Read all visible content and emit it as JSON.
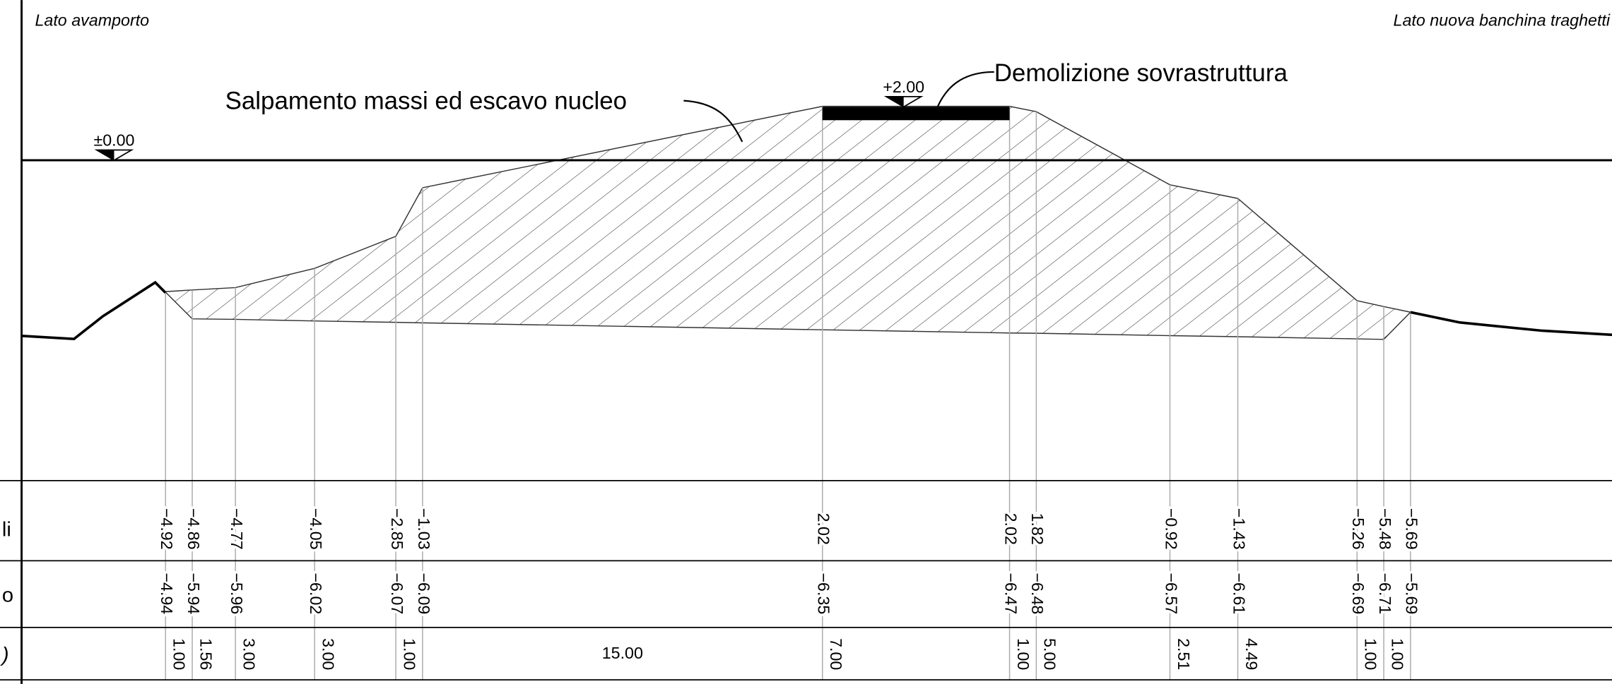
{
  "header": {
    "left": "Lato avamporto",
    "right": "Lato nuova banchina traghetti"
  },
  "annotations": {
    "excavation": "Salpamento massi ed escavo nucleo",
    "demolition": "Demolizione sovrastruttura",
    "sea_level": "±0.00",
    "crest": "+2.00"
  },
  "table": {
    "row_labels": [
      "li",
      "o",
      ")"
    ],
    "project": [
      "−4.92",
      "−4.86",
      "−4.77",
      "−4.05",
      "−2.85",
      "−1.03",
      "2.02",
      "2.02",
      "1.82",
      "−0.92",
      "−1.43",
      "−5.26",
      "−5.48",
      "−5.69"
    ],
    "existing": [
      "−4.94",
      "−5.94",
      "−5.96",
      "−6.02",
      "−6.07",
      "−6.09",
      "−6.35",
      "−6.47",
      "−6.48",
      "−6.57",
      "−6.61",
      "−6.69",
      "−6.71",
      "−5.69"
    ],
    "distances": [
      "1.00",
      "1.56",
      "3.00",
      "3.00",
      "1.00",
      "15.00",
      "7.00",
      "1.00",
      "5.00",
      "2.51",
      "4.49",
      "1.00",
      "1.00"
    ]
  }
}
